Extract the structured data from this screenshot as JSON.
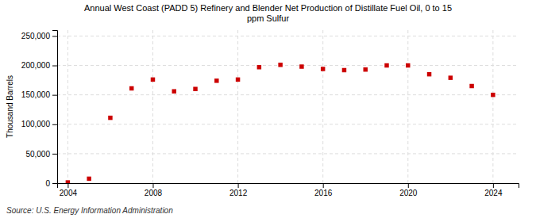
{
  "chart_data": {
    "type": "scatter",
    "title": "Annual West Coast (PADD 5) Refinery and Blender Net Production of Distillate Fuel Oil, 0 to 15\nppm Sulfur",
    "ylabel": "Thousand Barrels",
    "source": "Source: U.S. Energy Information Administration",
    "x": [
      2004,
      2005,
      2006,
      2007,
      2008,
      2009,
      2010,
      2011,
      2012,
      2013,
      2014,
      2015,
      2016,
      2017,
      2018,
      2019,
      2020,
      2021,
      2022,
      2023,
      2024
    ],
    "values": [
      1200,
      7500,
      111000,
      161000,
      176000,
      156000,
      160000,
      174000,
      176000,
      197000,
      201000,
      198000,
      194000,
      192000,
      193000,
      200000,
      200000,
      185000,
      179000,
      165000,
      150000
    ],
    "color": "#cc0000",
    "marker": "square",
    "xlim": [
      2003.5,
      2025.2
    ],
    "xticks": [
      2004,
      2008,
      2012,
      2016,
      2020,
      2024
    ],
    "ylim": [
      0,
      260000
    ],
    "yticks": [
      0,
      {
        "value": 50000,
        "label": "50,000"
      },
      {
        "value": 100000,
        "label": "100,000"
      },
      {
        "value": 150000,
        "label": "150,000"
      },
      {
        "value": 200000,
        "label": "200,000"
      },
      {
        "value": 250000,
        "label": "250,000"
      }
    ],
    "grid": true
  }
}
